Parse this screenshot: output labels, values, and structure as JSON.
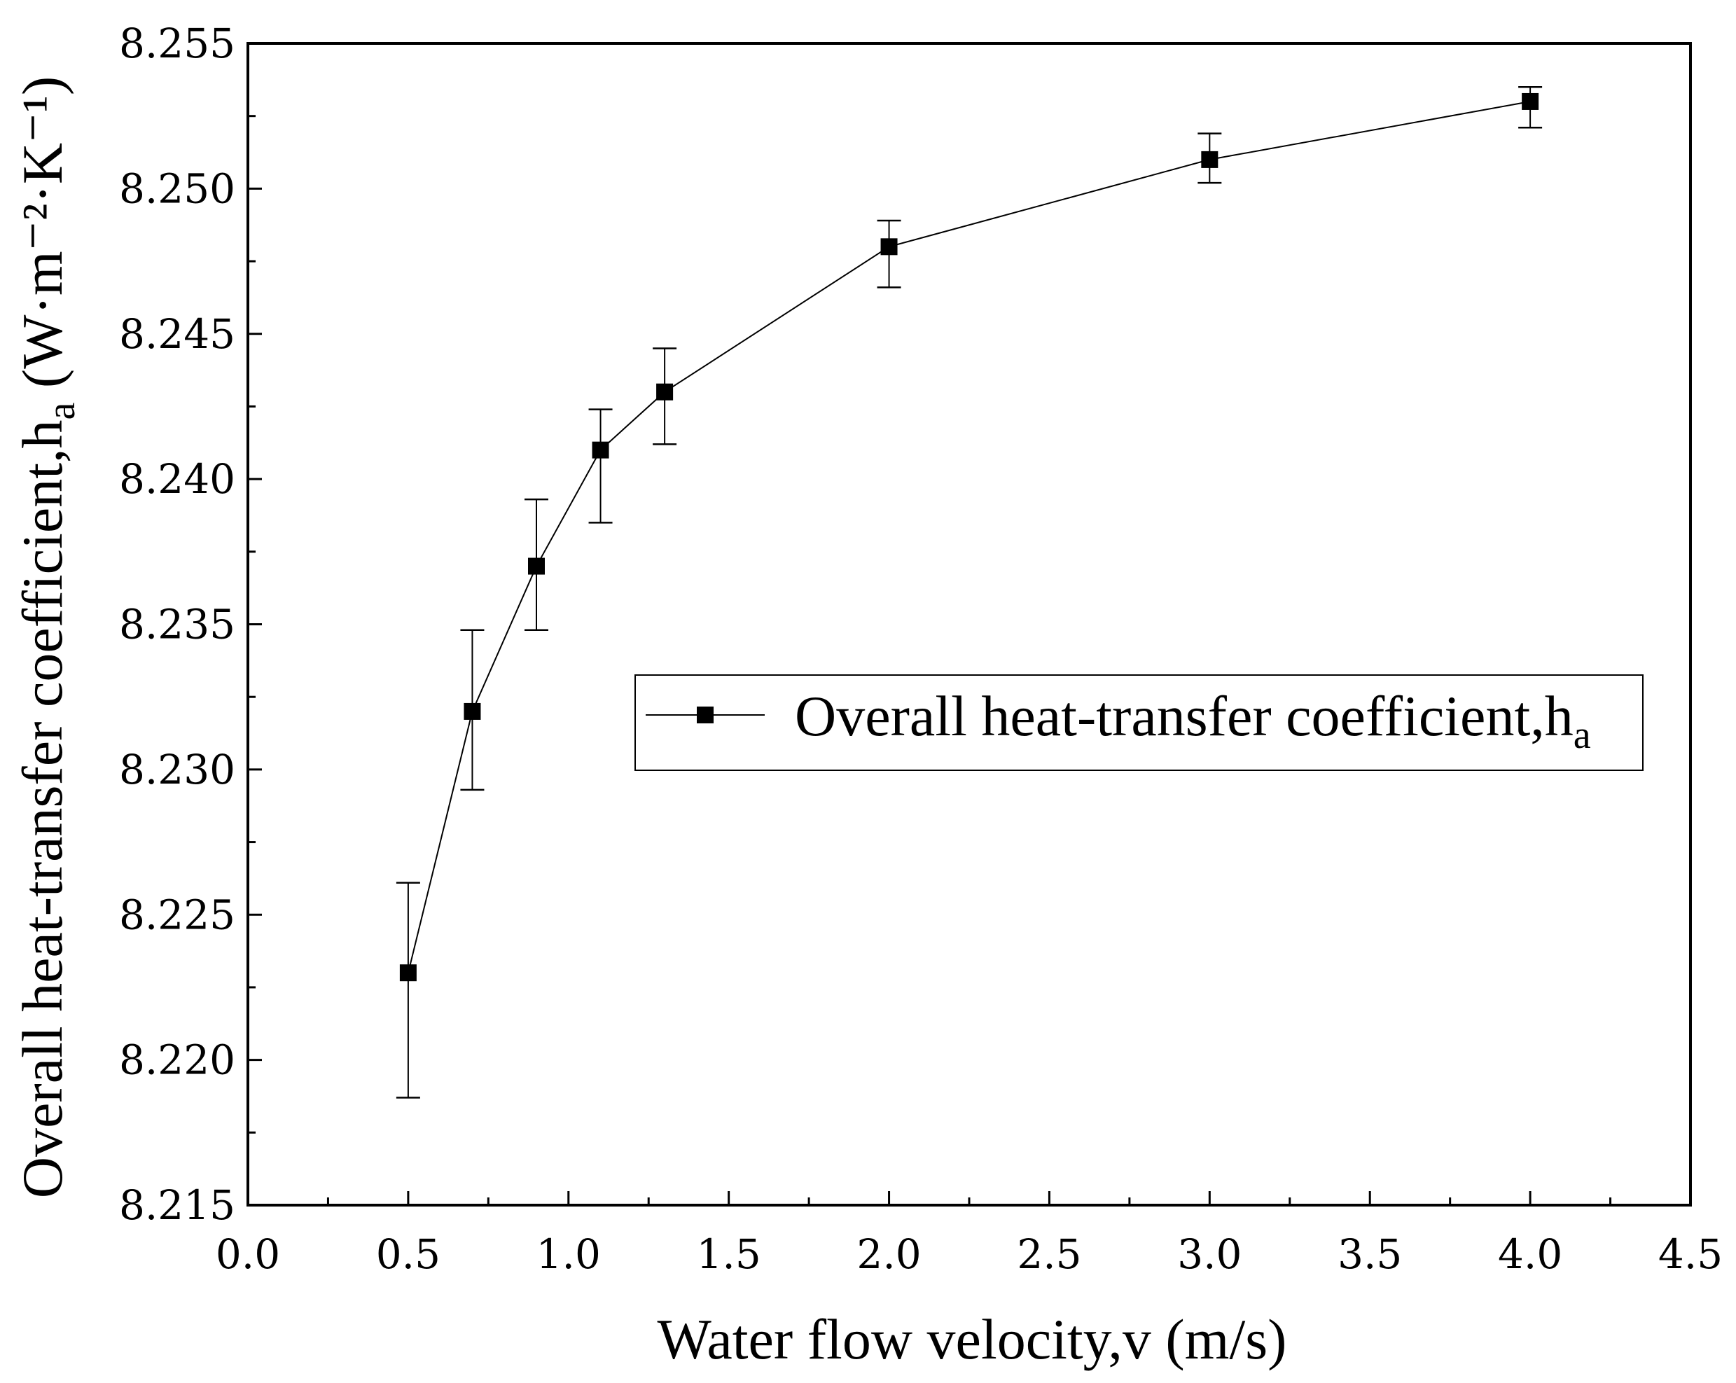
{
  "chart_data": {
    "type": "line",
    "title": "",
    "xlabel": "Water flow velocity,v (m/s)",
    "ylabel": {
      "main": "Overall heat-transfer coefficient,h",
      "sub": "a",
      "unit": " (W·m⁻²·K⁻¹)"
    },
    "xlim": [
      0.0,
      4.5
    ],
    "ylim": [
      8.215,
      8.255
    ],
    "x_ticks": [
      "0.0",
      "0.5",
      "1.0",
      "1.5",
      "2.0",
      "2.5",
      "3.0",
      "3.5",
      "4.0",
      "4.5"
    ],
    "y_ticks": [
      "8.215",
      "8.220",
      "8.225",
      "8.230",
      "8.235",
      "8.240",
      "8.245",
      "8.250",
      "8.255"
    ],
    "grid": false,
    "legend_position": "center-right",
    "series": [
      {
        "name": "Overall heat-transfer coefficient,h",
        "name_sub": "a",
        "marker": "square",
        "color": "#000000",
        "x": [
          0.5,
          0.7,
          0.9,
          1.1,
          1.3,
          2.0,
          3.0,
          4.0
        ],
        "y": [
          8.223,
          8.232,
          8.237,
          8.241,
          8.243,
          8.248,
          8.251,
          8.253
        ],
        "err_upper": [
          8.2261,
          8.2348,
          8.2393,
          8.2424,
          8.2445,
          8.2489,
          8.2519,
          8.2535
        ],
        "err_lower": [
          8.2187,
          8.2293,
          8.2348,
          8.2385,
          8.2412,
          8.2466,
          8.2502,
          8.2521
        ]
      }
    ]
  }
}
